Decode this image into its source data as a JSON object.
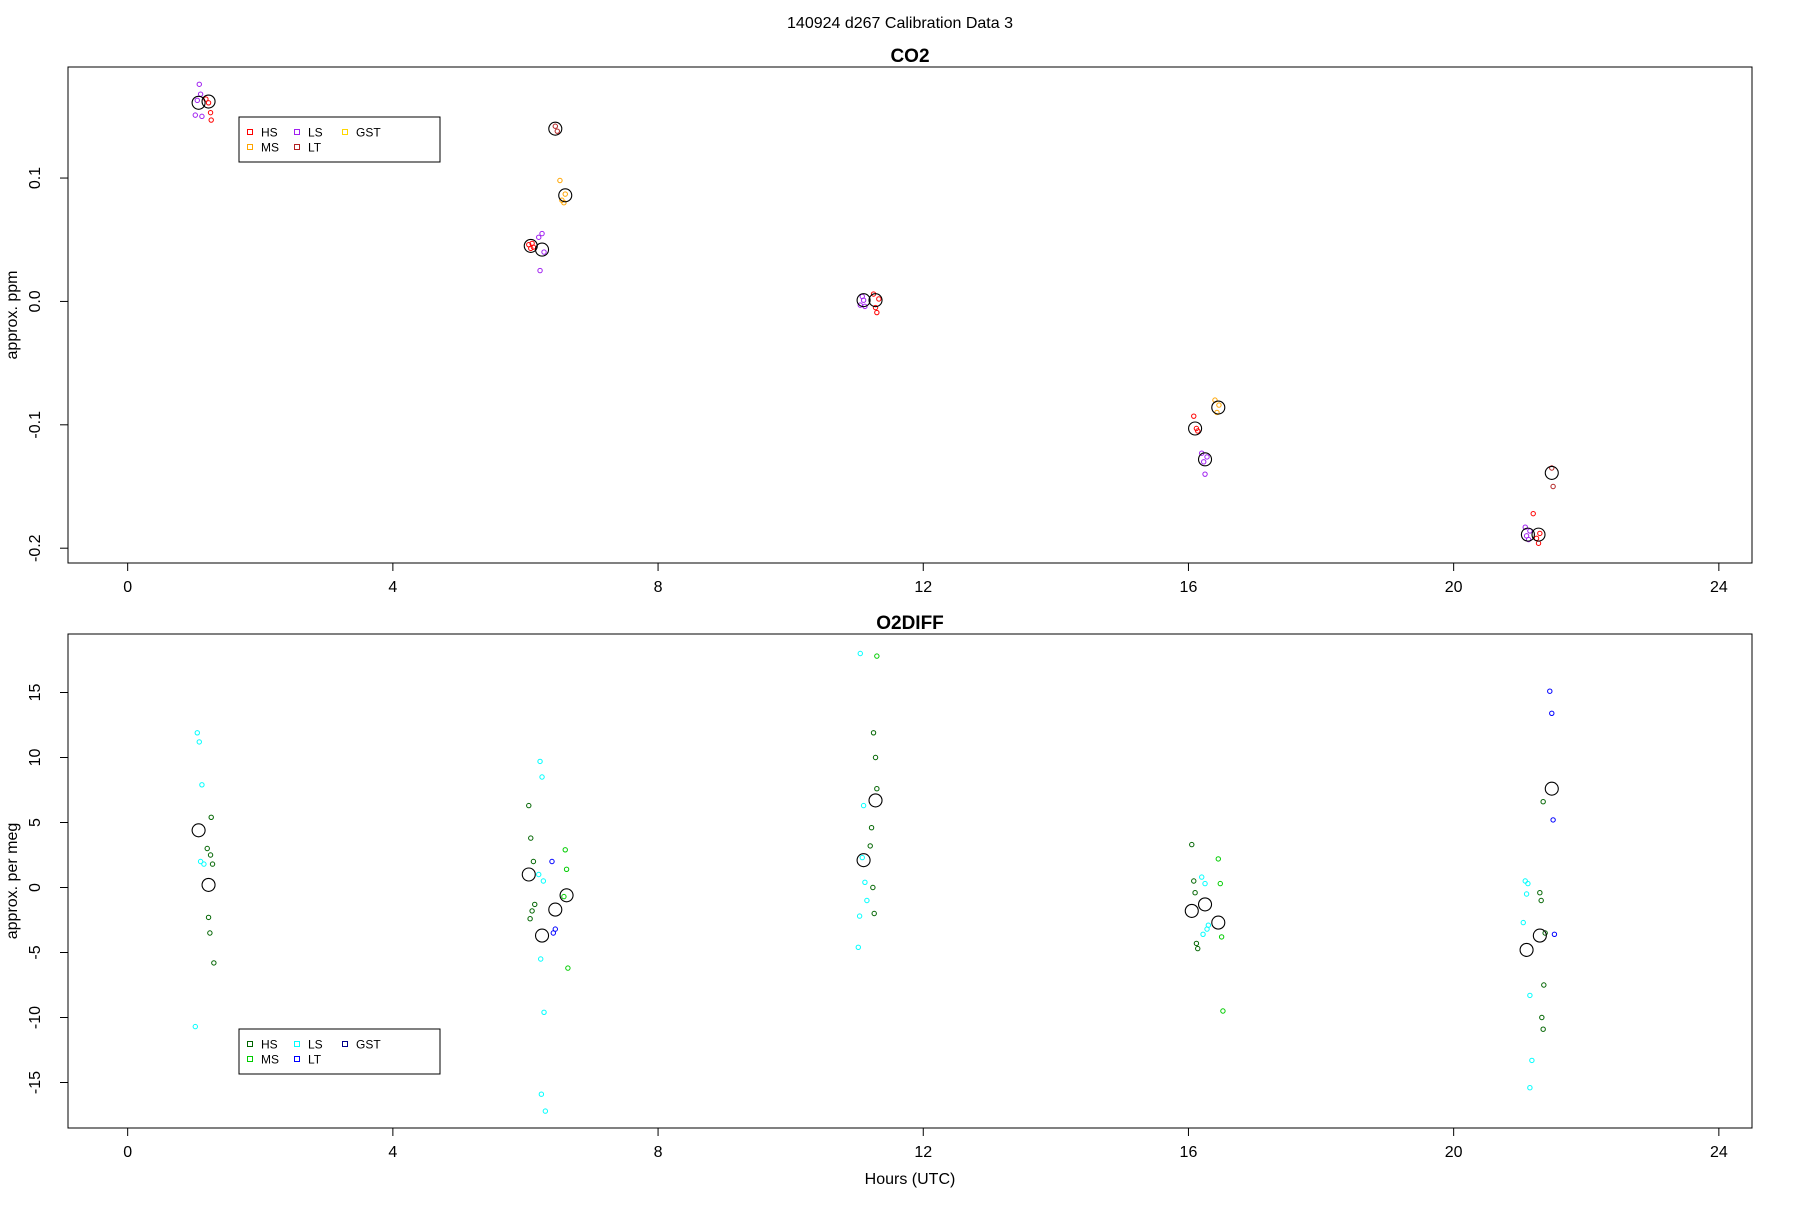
{
  "super_title": "140924   d267   Calibration Data 3",
  "chart_data": [
    {
      "type": "scatter",
      "title": "CO2",
      "xlabel": "",
      "ylabel": "approx. ppm",
      "xlim": [
        -0.9,
        24.5
      ],
      "ylim": [
        -0.212,
        0.19
      ],
      "xticks": [
        0,
        4,
        8,
        12,
        16,
        20,
        24
      ],
      "yticks": [
        -0.2,
        -0.1,
        0.0,
        0.1
      ],
      "ytick_labels": [
        "-0.2",
        "-0.1",
        "0.0",
        "0.1"
      ],
      "grid": false,
      "legend_position": "top-left",
      "legend": [
        {
          "name": "HS",
          "color": "#ff0000"
        },
        {
          "name": "MS",
          "color": "#ffa500"
        },
        {
          "name": "LS",
          "color": "#a020f0"
        },
        {
          "name": "LT",
          "color": "#b22222"
        },
        {
          "name": "GST",
          "color": "#ffd700"
        }
      ],
      "series": [
        {
          "name": "HS",
          "color": "#ff0000",
          "points": [
            [
              1.18,
              0.164
            ],
            [
              1.22,
              0.161
            ],
            [
              1.25,
              0.153
            ],
            [
              1.26,
              0.147
            ],
            [
              6.05,
              0.046
            ],
            [
              6.08,
              0.043
            ],
            [
              6.1,
              0.047
            ],
            [
              6.12,
              0.044
            ],
            [
              11.25,
              0.006
            ],
            [
              11.28,
              -0.005
            ],
            [
              11.3,
              -0.009
            ],
            [
              11.33,
              0.002
            ],
            [
              16.08,
              -0.093
            ],
            [
              16.12,
              -0.103
            ],
            [
              16.14,
              -0.105
            ],
            [
              21.2,
              -0.172
            ],
            [
              21.25,
              -0.192
            ],
            [
              21.28,
              -0.196
            ],
            [
              21.3,
              -0.188
            ]
          ]
        },
        {
          "name": "MS",
          "color": "#ffa500",
          "points": [
            [
              6.52,
              0.098
            ],
            [
              6.55,
              0.082
            ],
            [
              6.58,
              0.08
            ],
            [
              6.6,
              0.087
            ],
            [
              16.4,
              -0.08
            ],
            [
              16.43,
              -0.09
            ],
            [
              16.46,
              -0.084
            ]
          ]
        },
        {
          "name": "LS",
          "color": "#a020f0",
          "points": [
            [
              1.02,
              0.151
            ],
            [
              1.05,
              0.163
            ],
            [
              1.08,
              0.176
            ],
            [
              1.1,
              0.168
            ],
            [
              1.12,
              0.15
            ],
            [
              6.2,
              0.052
            ],
            [
              6.22,
              0.025
            ],
            [
              6.25,
              0.055
            ],
            [
              6.28,
              0.04
            ],
            [
              11.05,
              -0.003
            ],
            [
              11.08,
              0.004
            ],
            [
              11.1,
              0.001
            ],
            [
              11.12,
              -0.004
            ],
            [
              16.2,
              -0.123
            ],
            [
              16.23,
              -0.13
            ],
            [
              16.25,
              -0.14
            ],
            [
              16.28,
              -0.126
            ],
            [
              21.08,
              -0.183
            ],
            [
              21.1,
              -0.19
            ],
            [
              21.13,
              -0.193
            ],
            [
              21.15,
              -0.186
            ]
          ]
        },
        {
          "name": "LT",
          "color": "#b22222",
          "points": [
            [
              6.45,
              0.142
            ],
            [
              6.48,
              0.138
            ],
            [
              21.48,
              -0.135
            ],
            [
              21.5,
              -0.15
            ]
          ]
        },
        {
          "name": "GST",
          "color": "#ffd700",
          "points": []
        }
      ],
      "means": [
        [
          1.07,
          0.161
        ],
        [
          1.22,
          0.162
        ],
        [
          6.08,
          0.045
        ],
        [
          6.25,
          0.042
        ],
        [
          6.45,
          0.14
        ],
        [
          6.6,
          0.086
        ],
        [
          11.1,
          0.001
        ],
        [
          11.28,
          0.001
        ],
        [
          16.1,
          -0.103
        ],
        [
          16.25,
          -0.128
        ],
        [
          16.45,
          -0.086
        ],
        [
          21.12,
          -0.189
        ],
        [
          21.28,
          -0.189
        ],
        [
          21.48,
          -0.139
        ]
      ]
    },
    {
      "type": "scatter",
      "title": "O2DIFF",
      "xlabel": "Hours (UTC)",
      "ylabel": "approx. per meg",
      "xlim": [
        -0.9,
        24.5
      ],
      "ylim": [
        -18.5,
        19.5
      ],
      "xticks": [
        0,
        4,
        8,
        12,
        16,
        20,
        24
      ],
      "yticks": [
        -15,
        -10,
        -5,
        0,
        5,
        10,
        15
      ],
      "ytick_labels": [
        "-15",
        "-10",
        "-5",
        "0",
        "5",
        "10",
        "15"
      ],
      "grid": false,
      "legend_position": "bottom-left",
      "legend": [
        {
          "name": "HS",
          "color": "#006400"
        },
        {
          "name": "MS",
          "color": "#00cc00"
        },
        {
          "name": "LS",
          "color": "#00ffff"
        },
        {
          "name": "LT",
          "color": "#0000ff"
        },
        {
          "name": "GST",
          "color": "#00008b"
        }
      ],
      "series": [
        {
          "name": "HS",
          "color": "#006400",
          "points": [
            [
              1.2,
              3.0
            ],
            [
              1.25,
              2.5
            ],
            [
              1.28,
              1.8
            ],
            [
              1.22,
              -2.3
            ],
            [
              1.24,
              -3.5
            ],
            [
              1.3,
              -5.8
            ],
            [
              1.26,
              5.4
            ],
            [
              6.05,
              6.3
            ],
            [
              6.08,
              3.8
            ],
            [
              6.12,
              2.0
            ],
            [
              6.1,
              -1.8
            ],
            [
              6.07,
              -2.4
            ],
            [
              6.14,
              -1.3
            ],
            [
              11.25,
              11.9
            ],
            [
              11.28,
              10.0
            ],
            [
              11.3,
              7.6
            ],
            [
              11.22,
              4.6
            ],
            [
              11.2,
              3.2
            ],
            [
              11.24,
              0.0
            ],
            [
              11.26,
              -2.0
            ],
            [
              16.05,
              3.3
            ],
            [
              16.08,
              0.5
            ],
            [
              16.1,
              -0.4
            ],
            [
              16.12,
              -4.3
            ],
            [
              16.14,
              -4.7
            ],
            [
              21.35,
              6.6
            ],
            [
              21.3,
              -0.4
            ],
            [
              21.32,
              -1.0
            ],
            [
              21.38,
              -3.5
            ],
            [
              21.36,
              -7.5
            ],
            [
              21.33,
              -10.0
            ],
            [
              21.35,
              -10.9
            ]
          ]
        },
        {
          "name": "MS",
          "color": "#00cc00",
          "points": [
            [
              6.6,
              2.9
            ],
            [
              6.62,
              1.4
            ],
            [
              6.58,
              -0.7
            ],
            [
              6.64,
              -6.2
            ],
            [
              16.45,
              2.2
            ],
            [
              16.48,
              0.3
            ],
            [
              16.5,
              -3.8
            ],
            [
              16.52,
              -9.5
            ],
            [
              11.3,
              17.8
            ]
          ]
        },
        {
          "name": "LS",
          "color": "#00ffff",
          "points": [
            [
              1.05,
              11.9
            ],
            [
              1.08,
              11.2
            ],
            [
              1.12,
              7.9
            ],
            [
              1.1,
              2.0
            ],
            [
              1.15,
              1.8
            ],
            [
              1.02,
              -10.7
            ],
            [
              6.22,
              9.7
            ],
            [
              6.25,
              8.5
            ],
            [
              6.2,
              1.0
            ],
            [
              6.27,
              0.5
            ],
            [
              6.23,
              -5.5
            ],
            [
              6.28,
              -9.6
            ],
            [
              6.24,
              -15.9
            ],
            [
              6.3,
              -17.2
            ],
            [
              11.05,
              18.0
            ],
            [
              11.1,
              6.3
            ],
            [
              11.08,
              2.3
            ],
            [
              11.12,
              0.4
            ],
            [
              11.15,
              -1.0
            ],
            [
              11.04,
              -2.2
            ],
            [
              11.02,
              -4.6
            ],
            [
              16.2,
              0.8
            ],
            [
              16.25,
              0.3
            ],
            [
              16.28,
              -3.2
            ],
            [
              16.22,
              -3.6
            ],
            [
              16.3,
              -2.9
            ],
            [
              21.08,
              0.5
            ],
            [
              21.12,
              0.3
            ],
            [
              21.1,
              -0.5
            ],
            [
              21.05,
              -2.7
            ],
            [
              21.15,
              -8.3
            ],
            [
              21.18,
              -13.3
            ],
            [
              21.15,
              -15.4
            ]
          ]
        },
        {
          "name": "LT",
          "color": "#0000ff",
          "points": [
            [
              6.4,
              2.0
            ],
            [
              6.45,
              -3.2
            ],
            [
              6.42,
              -3.5
            ],
            [
              21.45,
              15.1
            ],
            [
              21.48,
              13.4
            ],
            [
              21.5,
              5.2
            ],
            [
              21.52,
              -3.6
            ]
          ]
        },
        {
          "name": "GST",
          "color": "#00008b",
          "points": []
        }
      ],
      "means": [
        [
          1.07,
          4.4
        ],
        [
          1.22,
          0.2
        ],
        [
          6.05,
          1.0
        ],
        [
          6.25,
          -3.7
        ],
        [
          6.45,
          -1.7
        ],
        [
          6.62,
          -0.6
        ],
        [
          11.1,
          2.1
        ],
        [
          11.28,
          6.7
        ],
        [
          16.05,
          -1.8
        ],
        [
          16.25,
          -1.3
        ],
        [
          16.45,
          -2.7
        ],
        [
          21.1,
          -4.8
        ],
        [
          21.3,
          -3.7
        ],
        [
          21.48,
          7.6
        ]
      ]
    }
  ]
}
